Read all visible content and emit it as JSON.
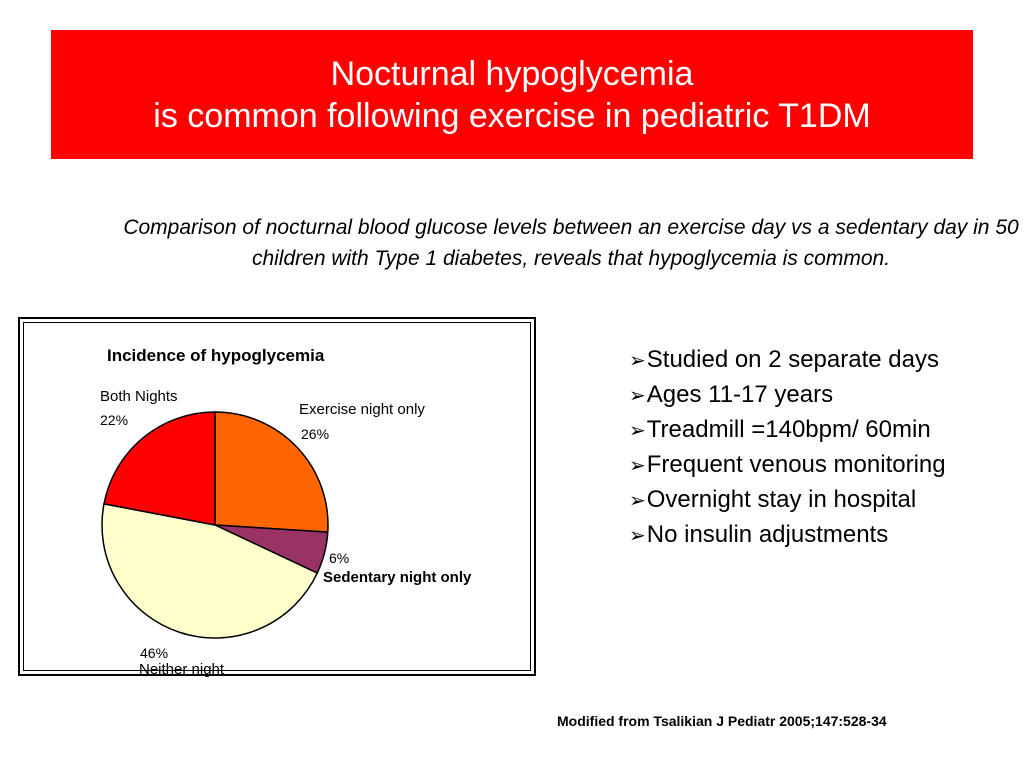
{
  "title": {
    "line1": "Nocturnal hypoglycemia",
    "line2": "is common following exercise in pediatric T1DM"
  },
  "subtitle": "Comparison of nocturnal blood glucose levels between an exercise day vs a sedentary day in 50 children with Type 1 diabetes, reveals that hypoglycemia is common.",
  "bullets": [
    "Studied on 2 separate days",
    "Ages 11-17 years",
    "Treadmill =140bpm/ 60min",
    "Frequent venous monitoring",
    "Overnight stay in hospital",
    "No insulin adjustments"
  ],
  "bullet_icon": "arrow-bullet-icon",
  "citation": "Modified from Tsalikian J Pediatr 2005;147:528-34",
  "colors": {
    "title_bg": "#fe0000",
    "exercise": "#ff6600",
    "sedentary": "#993366",
    "neither": "#ffffcc",
    "both": "#ff0000"
  },
  "chart_data": {
    "type": "pie",
    "title": "Incidence of hypoglycemia",
    "slices": [
      {
        "label": "Exercise night only",
        "value": 26,
        "value_label": "26%",
        "color": "#ff6600"
      },
      {
        "label": "Sedentary night only",
        "value": 6,
        "value_label": "6%",
        "color": "#993366"
      },
      {
        "label": "Neither night",
        "value": 46,
        "value_label": "46%",
        "color": "#ffffcc"
      },
      {
        "label": "Both Nights",
        "value": 22,
        "value_label": "22%",
        "color": "#ff0000"
      }
    ],
    "start": "12 o'clock",
    "direction": "clockwise"
  }
}
